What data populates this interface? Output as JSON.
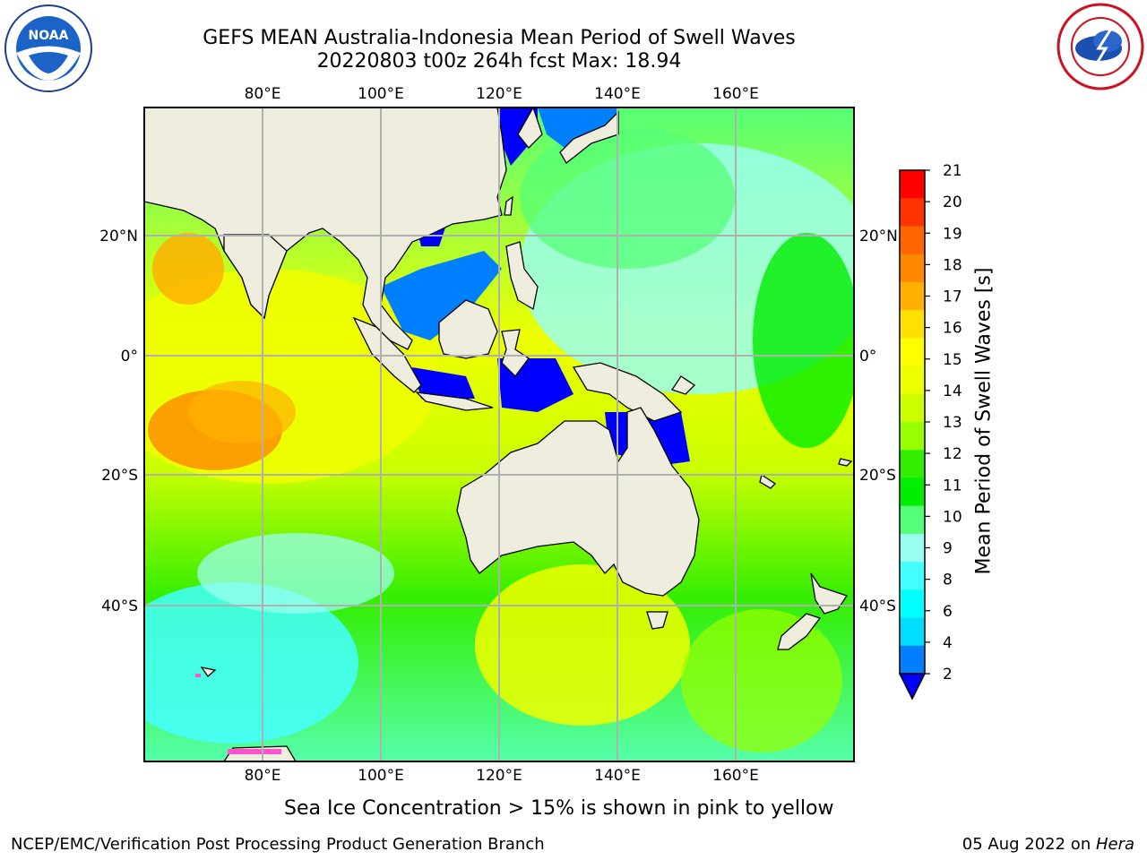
{
  "title": {
    "line1": "GEFS MEAN Australia-Indonesia Mean Period of Swell Waves",
    "line2": "20220803 t00z 264h fcst   Max: 18.94"
  },
  "logos": {
    "left": "noaa-logo",
    "right": "nws-logo"
  },
  "map": {
    "lon_labels": [
      "80°E",
      "100°E",
      "120°E",
      "140°E",
      "160°E"
    ],
    "lon_values": [
      80,
      100,
      120,
      140,
      160
    ],
    "lat_labels": [
      "20°N",
      "0°",
      "20°S",
      "40°S"
    ],
    "lat_values": [
      20,
      0,
      -20,
      -40
    ],
    "lon_range": [
      60,
      180
    ],
    "lat_range": [
      -68,
      42
    ],
    "land_color": "#efedde",
    "grid_color": "#b0b0b0"
  },
  "colorbar": {
    "label": "Mean Period of Swell Waves [s]",
    "ticks": [
      "21",
      "20",
      "19",
      "18",
      "17",
      "16",
      "15",
      "14",
      "13",
      "12",
      "11",
      "10",
      "9",
      "8",
      "6",
      "4",
      "2"
    ],
    "colors": [
      "#ff0000",
      "#ff3300",
      "#ff6600",
      "#ff8800",
      "#ffb000",
      "#ffe000",
      "#ffff00",
      "#eeff00",
      "#ccff00",
      "#99ff00",
      "#33ee00",
      "#00ee00",
      "#55ff77",
      "#99ffee",
      "#44ffff",
      "#00ffff",
      "#00ddff",
      "#0080ff",
      "#0000ff"
    ]
  },
  "notes": {
    "ice": "Sea Ice Concentration > 15% is shown in pink to yellow",
    "footer_left": "NCEP/EMC/Verification Post Processing Product Generation Branch",
    "footer_date": "05 Aug 2022 on ",
    "footer_host": "Hera"
  }
}
